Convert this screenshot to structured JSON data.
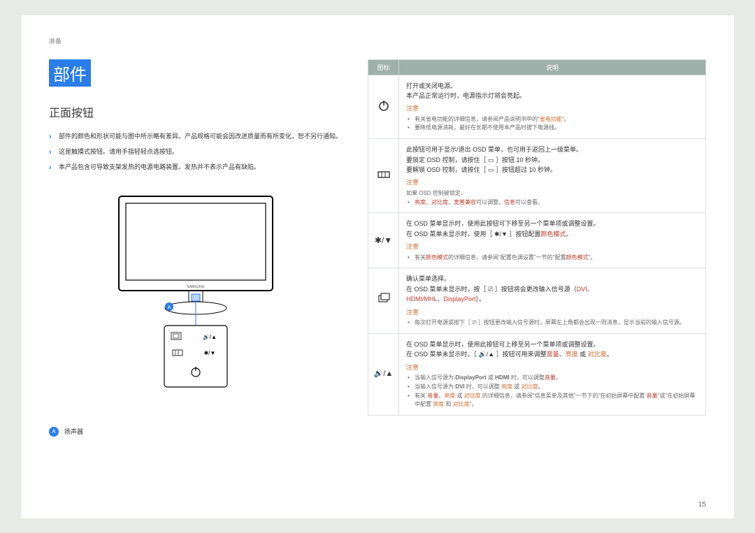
{
  "breadcrumb": "准备",
  "section_title": "部件",
  "subsection": "正面按钮",
  "left_bullets": [
    "部件的颜色和形状可能与图中所示略有差异。产品规格可能会因改进质量而有所变化，恕不另行通知。",
    "这是触摸式按钮。请用手指轻轻点选按钮。",
    "本产品包含可导致支架发热的电源电路装置。发热并不表示产品有缺陷。"
  ],
  "badge_letter": "A",
  "caption_text": "扬声器",
  "table": {
    "headers": [
      "图标",
      "说明"
    ],
    "rows": [
      {
        "icon": "power",
        "lines": [
          {
            "t": "打开或关闭电源。"
          },
          {
            "t": "本产品正常运行时，电源指示灯将会亮起。"
          }
        ],
        "notice": "注意",
        "sub": [
          {
            "parts": [
              {
                "t": "有关省电功能的详细信息，请参阅产品说明书中的\""
              },
              {
                "t": "省电功能",
                "c": "hl-orange"
              },
              {
                "t": "\"。"
              }
            ]
          },
          {
            "parts": [
              {
                "t": "要降低电源消耗，最好在长期不使用本产品时拔下电源线。"
              }
            ]
          }
        ]
      },
      {
        "icon": "menu",
        "lines": [
          {
            "t": "此按钮可用于显示/退出 OSD 菜单，也可用于返回上一级菜单。"
          },
          {
            "t": "要锁定 OSD 控制，请按住［ ▭ ］按钮 10 秒钟。"
          },
          {
            "t": "要解锁 OSD 控制，请按住［ ▭ ］按钮超过 10 秒钟。"
          }
        ],
        "notice": "注意",
        "plain_after": "如果 OSD 控制被锁定，",
        "sub": [
          {
            "parts": [
              {
                "t": "亮度、对比度、宽普兼容",
                "c": "hl-red"
              },
              {
                "t": "可以调整，"
              },
              {
                "t": "信息",
                "c": "hl-red"
              },
              {
                "t": "可以查看。"
              }
            ]
          }
        ]
      },
      {
        "icon": "magic",
        "lines": [
          {
            "t": "在 OSD 菜单显示时，使用此按钮可下移至另一个菜单项或调整设置。"
          },
          {
            "parts": [
              {
                "t": "在 OSD 菜单未显示时，使用［ ✱/▼ ］按钮配置"
              },
              {
                "t": "颜色模式",
                "c": "hl-red"
              },
              {
                "t": "。"
              }
            ]
          }
        ],
        "notice": "注意",
        "sub": [
          {
            "parts": [
              {
                "t": "有关"
              },
              {
                "t": "颜色模式",
                "c": "hl-red"
              },
              {
                "t": "的详细信息，请参阅\"配置色调设置\"一节的\"配置"
              },
              {
                "t": "颜色模式",
                "c": "hl-red"
              },
              {
                "t": "\"。"
              }
            ]
          }
        ]
      },
      {
        "icon": "source",
        "lines": [
          {
            "t": "确认菜单选择。"
          },
          {
            "parts": [
              {
                "t": "在 OSD 菜单未显示时，按［ ⎚ ］按钮将会更改输入信号源（"
              },
              {
                "t": "DVI",
                "c": "hl-red"
              },
              {
                "t": "、"
              }
            ]
          },
          {
            "parts": [
              {
                "t": "HDMI/MHL",
                "c": "hl-red"
              },
              {
                "t": "、"
              },
              {
                "t": "DisplayPort",
                "c": "hl-red"
              },
              {
                "t": "）。"
              }
            ]
          }
        ],
        "notice": "注意",
        "sub": [
          {
            "parts": [
              {
                "t": "每次打开电源或按下［ ⎚ ］按钮更改输入信号源时，屏幕左上角都会出现一则消息，显示当前的输入信号源。"
              }
            ]
          }
        ]
      },
      {
        "icon": "volume",
        "lines": [
          {
            "t": "在 OSD 菜单显示时，使用此按钮可上移至另一个菜单项或调整设置。"
          },
          {
            "parts": [
              {
                "t": "在 OSD 菜单未显示时，［ 🔊/▲ ］按钮可用来调整"
              },
              {
                "t": "音量",
                "c": "hl-red"
              },
              {
                "t": "、"
              },
              {
                "t": "亮度",
                "c": "hl-orange"
              },
              {
                "t": " 或 "
              },
              {
                "t": "对比度",
                "c": "hl-orange"
              },
              {
                "t": "。"
              }
            ]
          }
        ],
        "notice": "注意",
        "sub": [
          {
            "parts": [
              {
                "t": "当输入信号源为 "
              },
              {
                "t": "DisplayPort",
                "b": true
              },
              {
                "t": " 或 "
              },
              {
                "t": "HDMI",
                "b": true
              },
              {
                "t": " 时，可以调整"
              },
              {
                "t": "音量",
                "c": "hl-red"
              },
              {
                "t": "。"
              }
            ]
          },
          {
            "parts": [
              {
                "t": "当输入信号源为 "
              },
              {
                "t": "DVI",
                "b": true
              },
              {
                "t": " 时，可以调整 "
              },
              {
                "t": "亮度",
                "c": "hl-orange"
              },
              {
                "t": " 或 "
              },
              {
                "t": "对比度",
                "c": "hl-orange"
              },
              {
                "t": "。"
              }
            ]
          },
          {
            "parts": [
              {
                "t": "有关 "
              },
              {
                "t": "音量",
                "c": "hl-red"
              },
              {
                "t": "、"
              },
              {
                "t": "亮度",
                "c": "hl-orange"
              },
              {
                "t": " 或 "
              },
              {
                "t": "对比度",
                "c": "hl-orange"
              },
              {
                "t": " 的详细信息，请参阅\"信息菜单及其他\"一节下的\"在初始屏幕中配置 "
              },
              {
                "t": "音量",
                "c": "hl-red"
              },
              {
                "t": "\"或\"在初始屏幕中配置 "
              },
              {
                "t": "亮度",
                "c": "hl-orange"
              },
              {
                "t": " 和 "
              },
              {
                "t": "对比度",
                "c": "hl-orange"
              },
              {
                "t": "\"。"
              }
            ]
          }
        ]
      }
    ]
  },
  "page_number": "15",
  "colors": {
    "accent": "#2b7de9",
    "header_bg": "#9fb0ab",
    "notice": "#d36a2a",
    "highlight": "#c0392b",
    "page_bg": "#e8eae6"
  }
}
